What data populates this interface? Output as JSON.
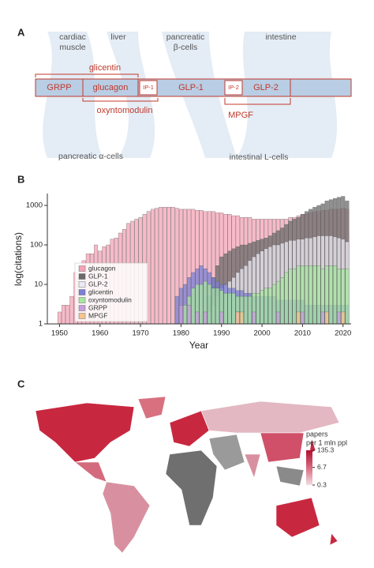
{
  "panel_a": {
    "label": "A",
    "tissues": {
      "cardiac_muscle": [
        "cardiac",
        "muscle"
      ],
      "liver": "liver",
      "pancreatic_beta": [
        "pancreatic",
        "β-cells"
      ],
      "intestine": "intestine",
      "alpha_cells": "pancreatic α-cells",
      "l_cells": "intestinal L-cells"
    },
    "segments": [
      "GRPP",
      "glucagon",
      "IP-1",
      "GLP-1",
      "IP-2",
      "GLP-2"
    ],
    "products": [
      "glicentin",
      "oxyntomodulin",
      "MPGF"
    ]
  },
  "chart_data": {
    "panel_label": "B",
    "type": "bar",
    "y_label": "log(citations)",
    "x_label": "Year",
    "log_scale": true,
    "x": [
      1949,
      1950,
      1951,
      1952,
      1953,
      1954,
      1955,
      1956,
      1957,
      1958,
      1959,
      1960,
      1961,
      1962,
      1963,
      1964,
      1965,
      1966,
      1967,
      1968,
      1969,
      1970,
      1971,
      1972,
      1973,
      1974,
      1975,
      1976,
      1977,
      1978,
      1979,
      1980,
      1981,
      1982,
      1983,
      1984,
      1985,
      1986,
      1987,
      1988,
      1989,
      1990,
      1991,
      1992,
      1993,
      1994,
      1995,
      1996,
      1997,
      1998,
      1999,
      2000,
      2001,
      2002,
      2003,
      2004,
      2005,
      2006,
      2007,
      2008,
      2009,
      2010,
      2011,
      2012,
      2013,
      2014,
      2015,
      2016,
      2017,
      2018,
      2019,
      2020,
      2021
    ],
    "xlim": [
      1947,
      2022
    ],
    "xticks": [
      1950,
      1960,
      1970,
      1980,
      1990,
      2000,
      2010,
      2020
    ],
    "ylim": [
      1,
      2000
    ],
    "yticks": [
      1,
      10,
      100,
      1000
    ],
    "series": [
      {
        "name": "glucagon",
        "color": "#f4a3b6",
        "values": [
          1,
          2,
          3,
          3,
          5,
          20,
          15,
          40,
          60,
          60,
          100,
          70,
          90,
          100,
          140,
          150,
          200,
          250,
          350,
          400,
          450,
          500,
          600,
          700,
          800,
          850,
          900,
          900,
          900,
          900,
          850,
          800,
          800,
          800,
          800,
          750,
          750,
          700,
          700,
          700,
          650,
          650,
          600,
          600,
          550,
          550,
          500,
          500,
          500,
          450,
          450,
          450,
          450,
          450,
          450,
          450,
          450,
          450,
          500,
          500,
          550,
          600,
          600,
          650,
          700,
          700,
          750,
          750,
          800,
          800,
          800,
          850,
          800
        ]
      },
      {
        "name": "GLP-1",
        "color": "#6b6b6b",
        "values": [
          null,
          null,
          null,
          null,
          null,
          null,
          null,
          null,
          null,
          null,
          null,
          null,
          null,
          null,
          null,
          null,
          null,
          null,
          null,
          null,
          null,
          null,
          null,
          null,
          null,
          null,
          null,
          null,
          null,
          null,
          null,
          null,
          null,
          null,
          null,
          null,
          null,
          null,
          5,
          15,
          30,
          50,
          60,
          70,
          80,
          90,
          100,
          100,
          110,
          120,
          130,
          140,
          150,
          170,
          200,
          230,
          270,
          330,
          400,
          450,
          500,
          600,
          700,
          800,
          900,
          1000,
          1100,
          1300,
          1400,
          1500,
          1600,
          1700,
          1300
        ]
      },
      {
        "name": "GLP-2",
        "color": "#ecebf4",
        "values": [
          null,
          null,
          null,
          null,
          null,
          null,
          null,
          null,
          null,
          null,
          null,
          null,
          null,
          null,
          null,
          null,
          null,
          null,
          null,
          null,
          null,
          null,
          null,
          null,
          null,
          null,
          null,
          null,
          null,
          null,
          null,
          null,
          null,
          null,
          null,
          null,
          null,
          null,
          2,
          3,
          5,
          8,
          10,
          12,
          15,
          20,
          25,
          30,
          40,
          50,
          60,
          70,
          80,
          90,
          100,
          100,
          110,
          120,
          130,
          130,
          140,
          140,
          150,
          150,
          160,
          170,
          170,
          170,
          170,
          160,
          150,
          140,
          120
        ]
      },
      {
        "name": "glicentin",
        "color": "#7b80d6",
        "values": [
          null,
          null,
          null,
          null,
          null,
          null,
          null,
          null,
          null,
          null,
          null,
          null,
          null,
          null,
          null,
          null,
          null,
          null,
          null,
          null,
          null,
          null,
          null,
          null,
          null,
          null,
          null,
          null,
          null,
          null,
          5,
          8,
          10,
          15,
          20,
          25,
          30,
          25,
          20,
          15,
          12,
          10,
          10,
          8,
          8,
          7,
          7,
          6,
          6,
          5,
          5,
          5,
          5,
          5,
          5,
          4,
          4,
          4,
          4,
          4,
          4,
          4,
          3,
          3,
          3,
          3,
          3,
          3,
          3,
          3,
          3,
          3,
          3
        ]
      },
      {
        "name": "oxyntomodulin",
        "color": "#a6e6a0",
        "values": [
          null,
          null,
          null,
          null,
          null,
          null,
          null,
          null,
          null,
          null,
          null,
          null,
          null,
          null,
          null,
          null,
          null,
          null,
          null,
          null,
          null,
          null,
          null,
          null,
          null,
          null,
          null,
          null,
          null,
          null,
          null,
          null,
          3,
          5,
          8,
          10,
          10,
          12,
          10,
          8,
          8,
          7,
          6,
          6,
          6,
          5,
          5,
          5,
          5,
          6,
          6,
          7,
          8,
          8,
          10,
          12,
          15,
          20,
          25,
          25,
          30,
          30,
          30,
          30,
          30,
          30,
          25,
          30,
          30,
          30,
          25,
          25,
          25
        ]
      },
      {
        "name": "GRPP",
        "color": "#c79fdc",
        "values": [
          null,
          null,
          null,
          null,
          null,
          null,
          null,
          null,
          null,
          null,
          null,
          null,
          null,
          null,
          null,
          null,
          null,
          null,
          null,
          null,
          null,
          null,
          null,
          null,
          null,
          null,
          null,
          null,
          null,
          null,
          null,
          3,
          null,
          3,
          null,
          2,
          null,
          2,
          null,
          null,
          null,
          2,
          null,
          null,
          null,
          2,
          null,
          null,
          null,
          2,
          null,
          null,
          null,
          null,
          null,
          2,
          null,
          null,
          null,
          null,
          null,
          2,
          null,
          null,
          null,
          null,
          2,
          null,
          null,
          null,
          2,
          null,
          null
        ]
      },
      {
        "name": "MPGF",
        "color": "#f6c48e",
        "values": [
          null,
          null,
          null,
          null,
          null,
          null,
          null,
          null,
          null,
          null,
          null,
          null,
          null,
          null,
          null,
          null,
          null,
          null,
          null,
          null,
          null,
          null,
          null,
          null,
          null,
          null,
          null,
          null,
          null,
          null,
          null,
          null,
          null,
          null,
          null,
          null,
          null,
          null,
          null,
          null,
          null,
          null,
          null,
          null,
          null,
          2,
          2,
          null,
          null,
          null,
          null,
          null,
          null,
          null,
          null,
          null,
          null,
          null,
          null,
          null,
          2,
          null,
          null,
          null,
          null,
          null,
          null,
          2,
          1,
          null,
          null,
          2,
          null
        ]
      }
    ]
  },
  "panel_c": {
    "label": "C",
    "legend_title": [
      "papers",
      "per 1 mln ppl"
    ],
    "scale_ticks": [
      135.3,
      6.7,
      0.3
    ]
  }
}
